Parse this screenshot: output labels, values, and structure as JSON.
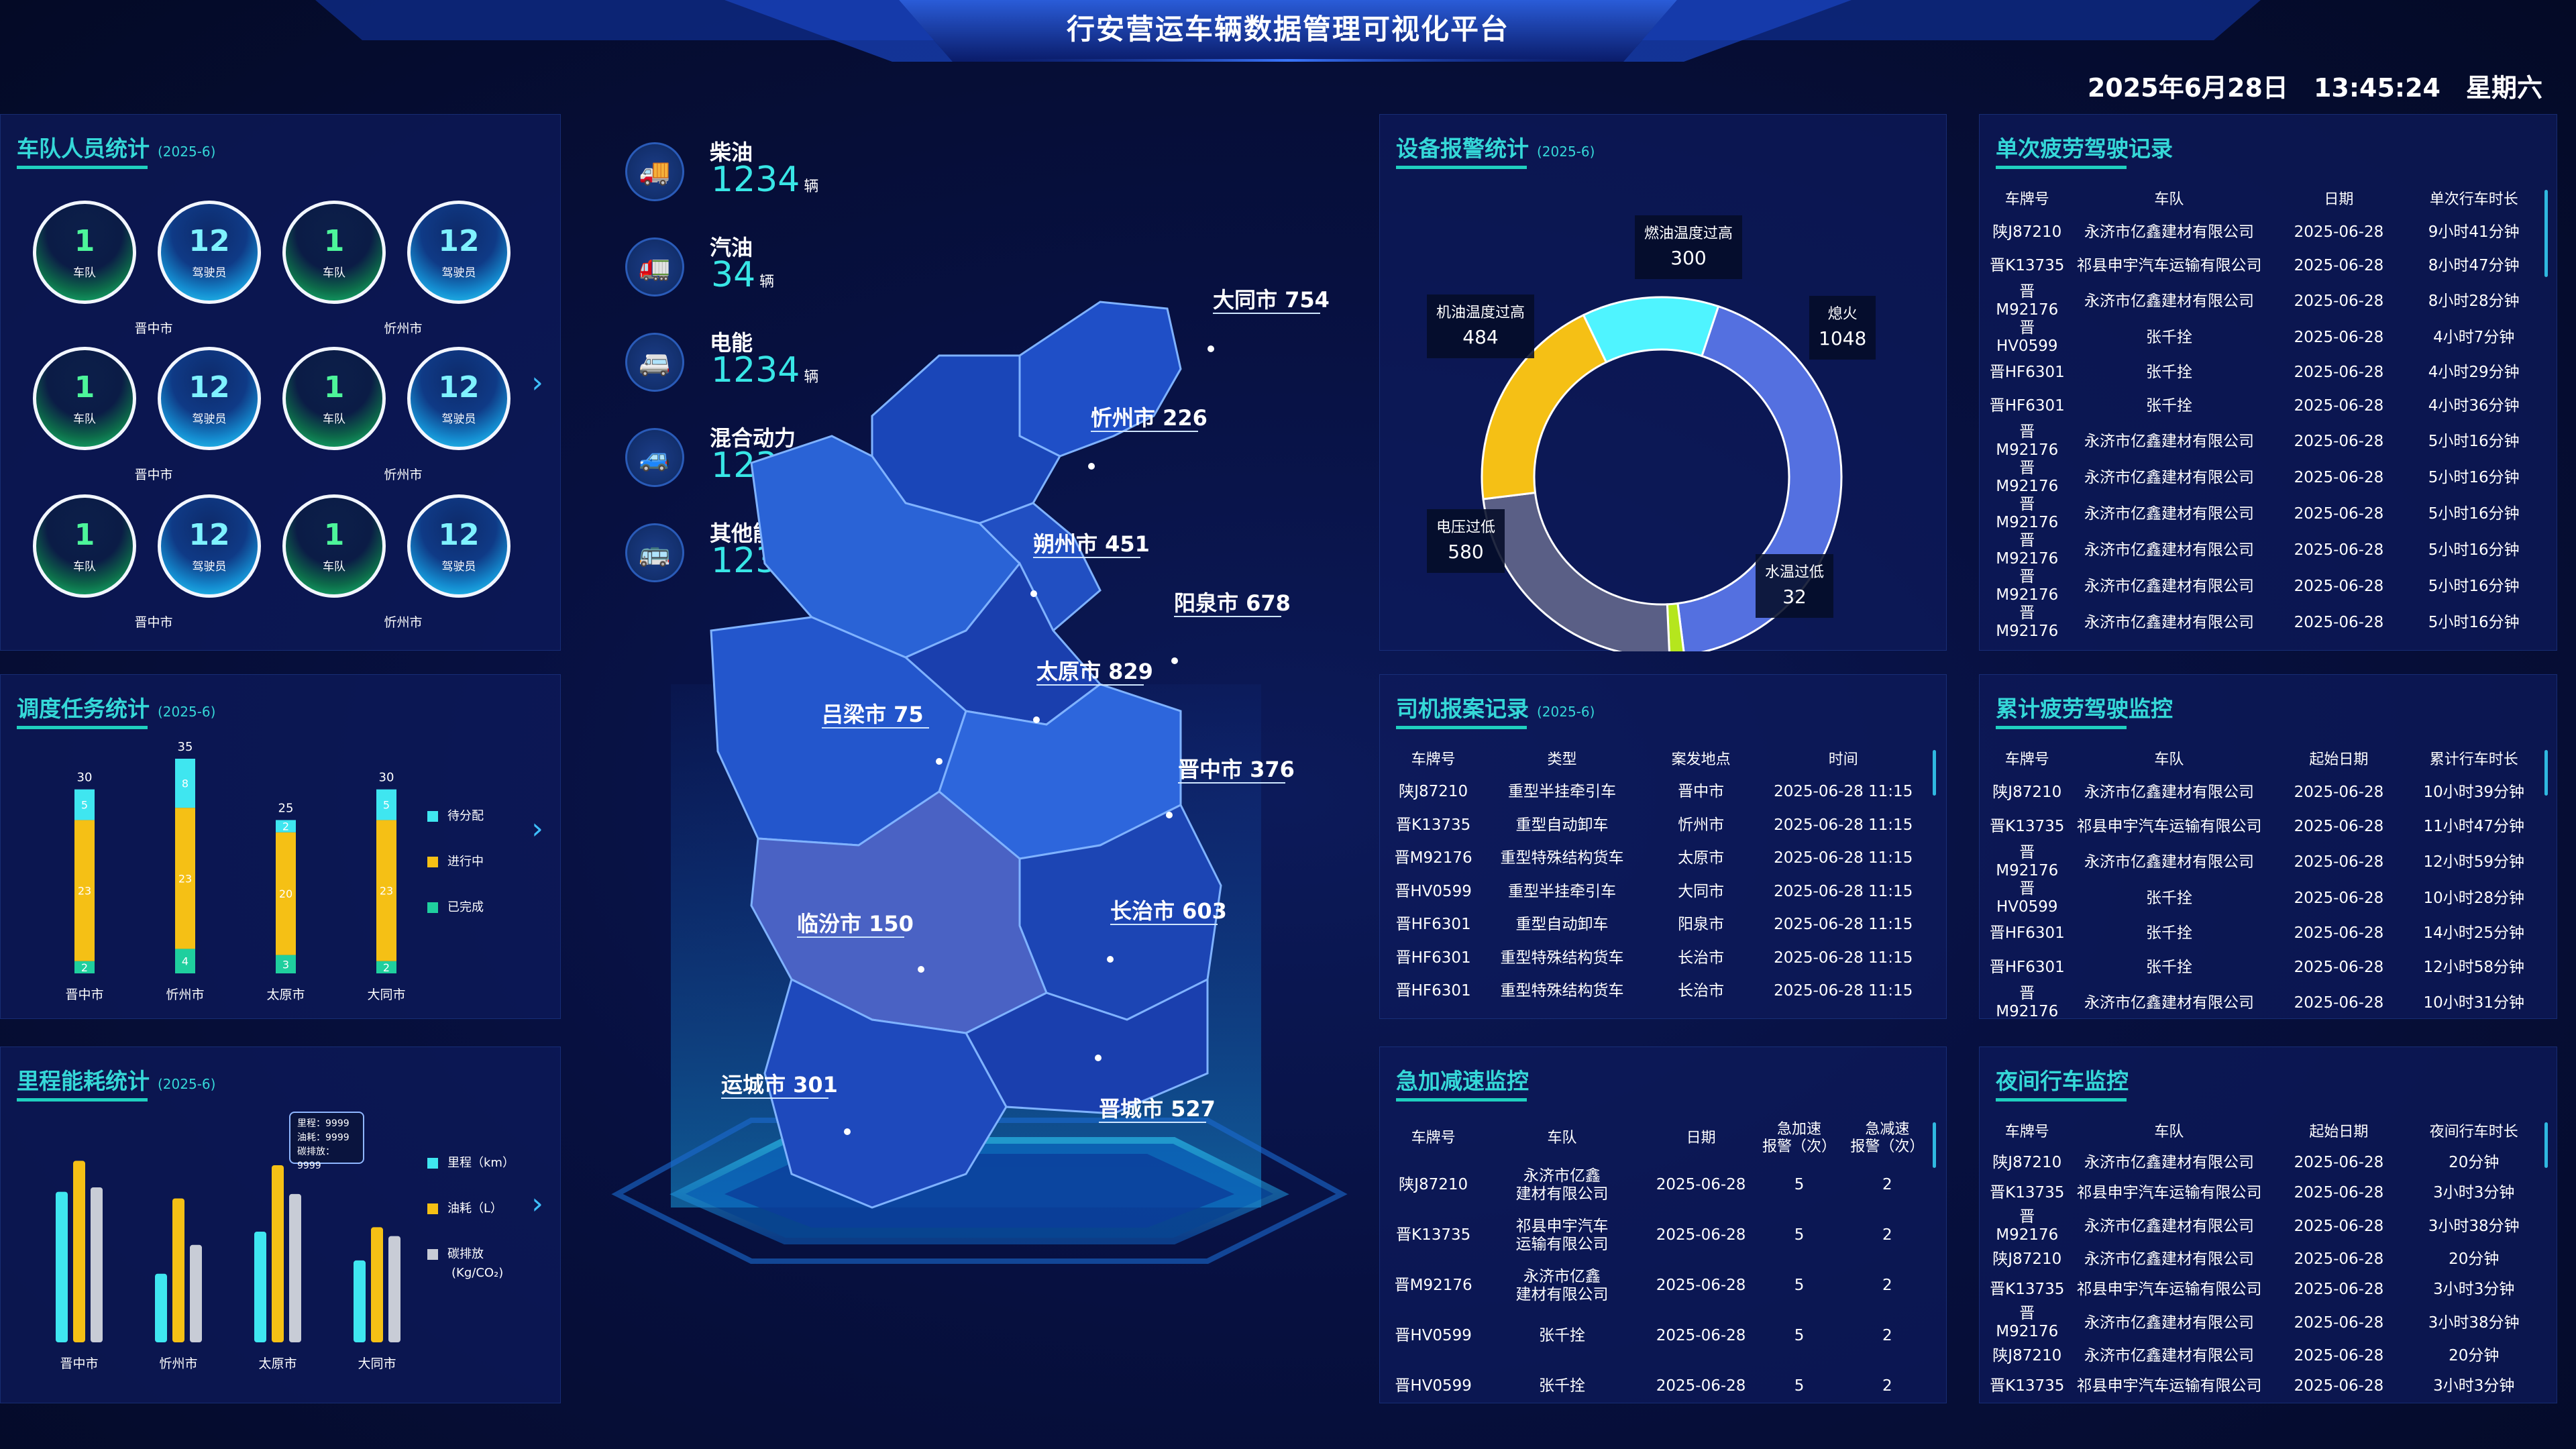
{
  "header": {
    "title": "行安营运车辆数据管理可视化平台",
    "date": "2025年6月28日",
    "time": "13:45:24",
    "weekday": "星期六"
  },
  "fleet": {
    "title": "车队人员统计",
    "period": "(2025-6)",
    "rows": [
      {
        "groups": [
          {
            "city": "晋中市",
            "team": "1",
            "team_label": "车队",
            "driver": "12",
            "driver_label": "驾驶员"
          },
          {
            "city": "忻州市",
            "team": "1",
            "team_label": "车队",
            "driver": "12",
            "driver_label": "驾驶员"
          }
        ]
      },
      {
        "groups": [
          {
            "city": "晋中市",
            "team": "1",
            "team_label": "车队",
            "driver": "12",
            "driver_label": "驾驶员"
          },
          {
            "city": "忻州市",
            "team": "1",
            "team_label": "车队",
            "driver": "12",
            "driver_label": "驾驶员"
          }
        ]
      },
      {
        "groups": [
          {
            "city": "晋中市",
            "team": "1",
            "team_label": "车队",
            "driver": "12",
            "driver_label": "驾驶员"
          },
          {
            "city": "忻州市",
            "team": "1",
            "team_label": "车队",
            "driver": "12",
            "driver_label": "驾驶员"
          }
        ]
      }
    ]
  },
  "dispatch": {
    "title": "调度任务统计",
    "period": "(2025-6)",
    "legend": [
      "待分配",
      "进行中",
      "已完成"
    ],
    "colors": {
      "pending": "#3fe6f0",
      "ongoing": "#f5c015",
      "done": "#1fcf9e"
    },
    "chart_data": {
      "type": "bar",
      "stacked": true,
      "categories": [
        "晋中市",
        "忻州市",
        "太原市",
        "大同市"
      ],
      "totals": [
        30,
        35,
        25,
        30
      ],
      "series": [
        {
          "name": "已完成",
          "values": [
            2,
            4,
            3,
            2
          ]
        },
        {
          "name": "进行中",
          "values": [
            23,
            23,
            20,
            23
          ]
        },
        {
          "name": "待分配",
          "values": [
            5,
            8,
            2,
            5
          ]
        }
      ]
    }
  },
  "mileage": {
    "title": "里程能耗统计",
    "period": "(2025-6)",
    "legend": [
      "里程（km）",
      "油耗（L）",
      "碳排放",
      "(Kg/CO₂)"
    ],
    "tooltip": [
      "里程：9999",
      "油耗：9999",
      "碳排放：9999"
    ],
    "colors": {
      "mileage": "#3fe6f0",
      "fuel": "#f5c015",
      "carbon": "#c8ccd6"
    },
    "chart_data": {
      "type": "bar",
      "categories": [
        "晋中市",
        "忻州市",
        "太原市",
        "大同市"
      ],
      "series": [
        {
          "name": "里程（km）",
          "values": [
            68,
            31,
            50,
            37
          ]
        },
        {
          "name": "油耗（L）",
          "values": [
            82,
            65,
            80,
            52
          ]
        },
        {
          "name": "碳排放",
          "values": [
            70,
            44,
            67,
            48
          ]
        }
      ],
      "ylim": [
        0,
        100
      ]
    }
  },
  "energy": [
    {
      "name": "柴油",
      "value": "1234",
      "unit": "辆",
      "icon": "diesel-truck-icon"
    },
    {
      "name": "汽油",
      "value": "34",
      "unit": "辆",
      "icon": "gasoline-truck-icon"
    },
    {
      "name": "电能",
      "value": "1234",
      "unit": "辆",
      "icon": "electric-truck-icon"
    },
    {
      "name": "混合动力",
      "value": "1234",
      "unit": "辆",
      "icon": "hybrid-truck-icon"
    },
    {
      "name": "其他能源",
      "value": "1234",
      "unit": "辆",
      "icon": "other-energy-truck-icon"
    }
  ],
  "map": {
    "cities": [
      {
        "name": "大同市 754"
      },
      {
        "name": "忻州市 226"
      },
      {
        "name": "朔州市 451"
      },
      {
        "name": "阳泉市 678"
      },
      {
        "name": "太原市 829"
      },
      {
        "name": "吕梁市 75"
      },
      {
        "name": "晋中市 376"
      },
      {
        "name": "长治市 603"
      },
      {
        "name": "临汾市 150"
      },
      {
        "name": "运城市 301"
      },
      {
        "name": "晋城市 527"
      }
    ]
  },
  "alarm": {
    "title": "设备报警统计",
    "period": "(2025-6)",
    "chart_data": {
      "type": "pie",
      "donut": true,
      "slices": [
        {
          "name": "燃油温度过高",
          "value": 300,
          "color": "#4ff4ff"
        },
        {
          "name": "熄火",
          "value": 1048,
          "color": "#5470e0"
        },
        {
          "name": "水温过低",
          "value": 32,
          "color": "#b5e61d"
        },
        {
          "name": "电压过低",
          "value": 580,
          "color": "#5a5f86"
        },
        {
          "name": "机油温度过高",
          "value": 484,
          "color": "#f5c015"
        }
      ]
    }
  },
  "fatigue_single": {
    "title": "单次疲劳驾驶记录",
    "headers": [
      "车牌号",
      "车队",
      "日期",
      "单次行车时长"
    ],
    "rows": [
      [
        "陕J87210",
        "永济市亿鑫建材有限公司",
        "2025-06-28",
        "9小时41分钟"
      ],
      [
        "晋K13735",
        "祁县申宇汽车运输有限公司",
        "2025-06-28",
        "8小时47分钟"
      ],
      [
        "晋M92176",
        "永济市亿鑫建材有限公司",
        "2025-06-28",
        "8小时28分钟"
      ],
      [
        "晋HV0599",
        "张千拴",
        "2025-06-28",
        "4小时7分钟"
      ],
      [
        "晋HF6301",
        "张千拴",
        "2025-06-28",
        "4小时29分钟"
      ],
      [
        "晋HF6301",
        "张千拴",
        "2025-06-28",
        "4小时36分钟"
      ],
      [
        "晋M92176",
        "永济市亿鑫建材有限公司",
        "2025-06-28",
        "5小时16分钟"
      ],
      [
        "晋M92176",
        "永济市亿鑫建材有限公司",
        "2025-06-28",
        "5小时16分钟"
      ],
      [
        "晋M92176",
        "永济市亿鑫建材有限公司",
        "2025-06-28",
        "5小时16分钟"
      ],
      [
        "晋M92176",
        "永济市亿鑫建材有限公司",
        "2025-06-28",
        "5小时16分钟"
      ],
      [
        "晋M92176",
        "永济市亿鑫建材有限公司",
        "2025-06-28",
        "5小时16分钟"
      ],
      [
        "晋M92176",
        "永济市亿鑫建材有限公司",
        "2025-06-28",
        "5小时16分钟"
      ]
    ]
  },
  "police": {
    "title": "司机报案记录",
    "period": "(2025-6)",
    "headers": [
      "车牌号",
      "类型",
      "案发地点",
      "时间"
    ],
    "rows": [
      [
        "陕J87210",
        "重型半挂牵引车",
        "晋中市",
        "2025-06-28 11:15"
      ],
      [
        "晋K13735",
        "重型自动卸车",
        "忻州市",
        "2025-06-28 11:15"
      ],
      [
        "晋M92176",
        "重型特殊结构货车",
        "太原市",
        "2025-06-28 11:15"
      ],
      [
        "晋HV0599",
        "重型半挂牵引车",
        "大同市",
        "2025-06-28 11:15"
      ],
      [
        "晋HF6301",
        "重型自动卸车",
        "阳泉市",
        "2025-06-28 11:15"
      ],
      [
        "晋HF6301",
        "重型特殊结构货车",
        "长治市",
        "2025-06-28 11:15"
      ],
      [
        "晋HF6301",
        "重型特殊结构货车",
        "长治市",
        "2025-06-28 11:15"
      ]
    ]
  },
  "fatigue_total": {
    "title": "累计疲劳驾驶监控",
    "headers": [
      "车牌号",
      "车队",
      "起始日期",
      "累计行车时长"
    ],
    "rows": [
      [
        "陕J87210",
        "永济市亿鑫建材有限公司",
        "2025-06-28",
        "10小时39分钟"
      ],
      [
        "晋K13735",
        "祁县申宇汽车运输有限公司",
        "2025-06-28",
        "11小时47分钟"
      ],
      [
        "晋M92176",
        "永济市亿鑫建材有限公司",
        "2025-06-28",
        "12小时59分钟"
      ],
      [
        "晋HV0599",
        "张千拴",
        "2025-06-28",
        "10小时28分钟"
      ],
      [
        "晋HF6301",
        "张千拴",
        "2025-06-28",
        "14小时25分钟"
      ],
      [
        "晋HF6301",
        "张千拴",
        "2025-06-28",
        "12小时58分钟"
      ],
      [
        "晋M92176",
        "永济市亿鑫建材有限公司",
        "2025-06-28",
        "10小时31分钟"
      ]
    ]
  },
  "accel": {
    "title": "急加减速监控",
    "headers": [
      "车牌号",
      "车队",
      "日期",
      "急加速\n报警（次）",
      "急减速\n报警（次）"
    ],
    "rows": [
      [
        "陕J87210",
        "永济市亿鑫\n建材有限公司",
        "2025-06-28",
        "5",
        "2"
      ],
      [
        "晋K13735",
        "祁县申宇汽车\n运输有限公司",
        "2025-06-28",
        "5",
        "2"
      ],
      [
        "晋M92176",
        "永济市亿鑫\n建材有限公司",
        "2025-06-28",
        "5",
        "2"
      ],
      [
        "晋HV0599",
        "张千拴",
        "2025-06-28",
        "5",
        "2"
      ],
      [
        "晋HV0599",
        "张千拴",
        "2025-06-28",
        "5",
        "2"
      ]
    ]
  },
  "night": {
    "title": "夜间行车监控",
    "headers": [
      "车牌号",
      "车队",
      "起始日期",
      "夜间行车时长"
    ],
    "rows": [
      [
        "陕J87210",
        "永济市亿鑫建材有限公司",
        "2025-06-28",
        "20分钟"
      ],
      [
        "晋K13735",
        "祁县申宇汽车运输有限公司",
        "2025-06-28",
        "3小时3分钟"
      ],
      [
        "晋M92176",
        "永济市亿鑫建材有限公司",
        "2025-06-28",
        "3小时38分钟"
      ],
      [
        "陕J87210",
        "永济市亿鑫建材有限公司",
        "2025-06-28",
        "20分钟"
      ],
      [
        "晋K13735",
        "祁县申宇汽车运输有限公司",
        "2025-06-28",
        "3小时3分钟"
      ],
      [
        "晋M92176",
        "永济市亿鑫建材有限公司",
        "2025-06-28",
        "3小时38分钟"
      ],
      [
        "陕J87210",
        "永济市亿鑫建材有限公司",
        "2025-06-28",
        "20分钟"
      ],
      [
        "晋K13735",
        "祁县申宇汽车运输有限公司",
        "2025-06-28",
        "3小时3分钟"
      ]
    ]
  }
}
